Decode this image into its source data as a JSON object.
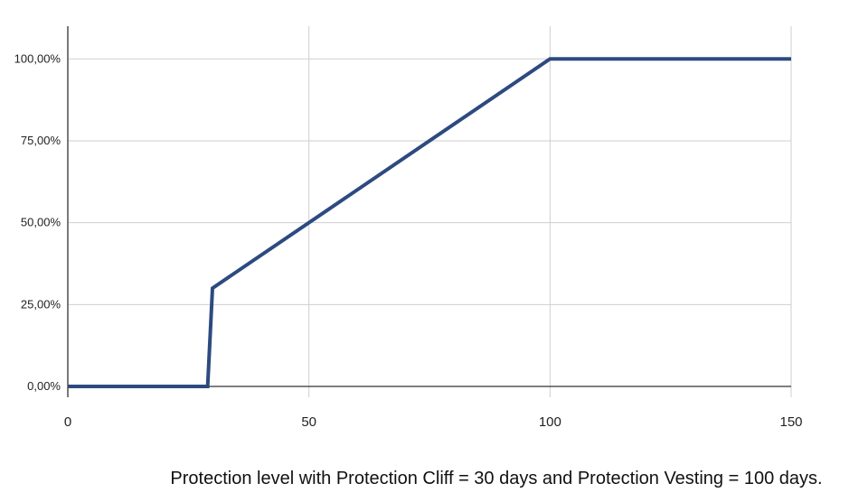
{
  "chart_data": {
    "type": "line",
    "x": [
      0,
      29,
      30,
      100,
      150
    ],
    "series": [
      {
        "values": [
          0,
          0,
          30,
          100,
          100
        ]
      }
    ],
    "xlim": [
      0,
      150
    ],
    "ylim": [
      0,
      110
    ],
    "xticks": [
      "0",
      "50",
      "100",
      "150"
    ],
    "yticks": [
      "0,00%",
      "25,00%",
      "50,00%",
      "75,00%",
      "100,00%"
    ],
    "grid": true,
    "line_color": "#2d4a80"
  },
  "caption": "Protection level with Protection Cliff = 30 days and Protection Vesting = 100 days."
}
